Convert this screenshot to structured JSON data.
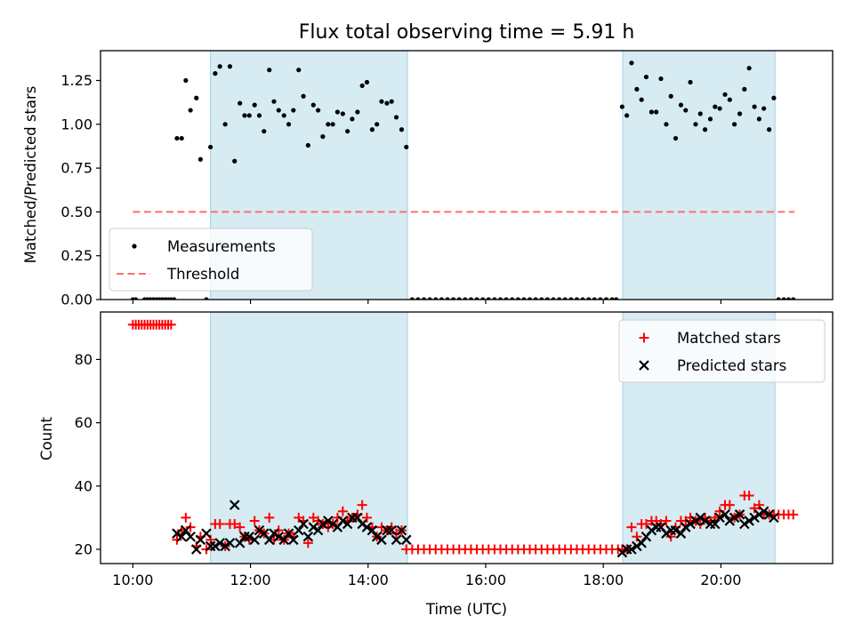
{
  "title": "Flux total observing time = 5.91 h",
  "colors": {
    "shade": "#add8e6",
    "measurement": "#000000",
    "threshold": "#ff6e6e",
    "matched": "#ff0000",
    "predicted": "#000000"
  },
  "x_ticks": [
    "10:00",
    "12:00",
    "14:00",
    "16:00",
    "18:00",
    "20:00"
  ],
  "x_tick_hours": [
    10,
    12,
    14,
    16,
    18,
    20
  ],
  "xlabel": "Time (UTC)",
  "chart_data": [
    {
      "type": "scatter",
      "ylabel": "Matched/Predicted stars",
      "xlim_hours": [
        9.45,
        21.9
      ],
      "ylim": [
        0,
        1.42
      ],
      "y_ticks": [
        "0.00",
        "0.25",
        "0.50",
        "0.75",
        "1.00",
        "1.25"
      ],
      "y_tick_values": [
        0,
        0.25,
        0.5,
        0.75,
        1.0,
        1.25
      ],
      "shaded_intervals_hours": [
        [
          11.32,
          14.67
        ],
        [
          18.33,
          20.92
        ]
      ],
      "legend": {
        "position": "lower-left",
        "entries": [
          "Measurements",
          "Threshold"
        ]
      },
      "threshold": {
        "name": "Threshold",
        "value": 0.5,
        "x_range_hours": [
          10.0,
          21.25
        ]
      },
      "series": [
        {
          "name": "Measurements",
          "x_hours": [
            10.0,
            10.05,
            10.2,
            10.25,
            10.3,
            10.35,
            10.4,
            10.45,
            10.5,
            10.55,
            10.6,
            10.65,
            10.7,
            10.75,
            10.83,
            10.9,
            10.98,
            11.08,
            11.15,
            11.25,
            11.32,
            11.4,
            11.48,
            11.57,
            11.65,
            11.73,
            11.82,
            11.9,
            11.98,
            12.07,
            12.15,
            12.23,
            12.32,
            12.4,
            12.48,
            12.57,
            12.65,
            12.73,
            12.82,
            12.9,
            12.98,
            13.07,
            13.15,
            13.23,
            13.32,
            13.4,
            13.48,
            13.57,
            13.65,
            13.73,
            13.82,
            13.9,
            13.98,
            14.07,
            14.15,
            14.23,
            14.32,
            14.4,
            14.48,
            14.57,
            14.65,
            14.75,
            14.85,
            14.95,
            15.05,
            15.15,
            15.25,
            15.35,
            15.45,
            15.55,
            15.65,
            15.75,
            15.85,
            15.95,
            16.05,
            16.15,
            16.25,
            16.35,
            16.45,
            16.55,
            16.65,
            16.75,
            16.85,
            16.95,
            17.05,
            17.15,
            17.25,
            17.35,
            17.45,
            17.55,
            17.65,
            17.75,
            17.85,
            17.95,
            18.05,
            18.15,
            18.22,
            18.32,
            18.4,
            18.48,
            18.57,
            18.65,
            18.73,
            18.82,
            18.9,
            18.98,
            19.07,
            19.15,
            19.23,
            19.32,
            19.4,
            19.48,
            19.57,
            19.65,
            19.73,
            19.82,
            19.9,
            19.98,
            20.07,
            20.15,
            20.23,
            20.32,
            20.4,
            20.48,
            20.57,
            20.65,
            20.73,
            20.82,
            20.9,
            20.98,
            21.07,
            21.15,
            21.23
          ],
          "y": [
            0.0,
            0.0,
            0.0,
            0.0,
            0.0,
            0.0,
            0.0,
            0.0,
            0.0,
            0.0,
            0.0,
            0.0,
            0.0,
            0.92,
            0.92,
            1.25,
            1.08,
            1.15,
            0.8,
            0.0,
            0.87,
            1.29,
            1.33,
            1.0,
            1.33,
            0.79,
            1.12,
            1.05,
            1.05,
            1.11,
            1.05,
            0.96,
            1.31,
            1.13,
            1.08,
            1.05,
            1.0,
            1.08,
            1.31,
            1.16,
            0.88,
            1.11,
            1.08,
            0.93,
            1.0,
            1.0,
            1.07,
            1.06,
            0.96,
            1.03,
            1.07,
            1.22,
            1.24,
            0.97,
            1.0,
            1.13,
            1.12,
            1.13,
            1.04,
            0.97,
            0.87,
            0.0,
            0.0,
            0.0,
            0.0,
            0.0,
            0.0,
            0.0,
            0.0,
            0.0,
            0.0,
            0.0,
            0.0,
            0.0,
            0.0,
            0.0,
            0.0,
            0.0,
            0.0,
            0.0,
            0.0,
            0.0,
            0.0,
            0.0,
            0.0,
            0.0,
            0.0,
            0.0,
            0.0,
            0.0,
            0.0,
            0.0,
            0.0,
            0.0,
            0.0,
            0.0,
            0.0,
            1.1,
            1.05,
            1.35,
            1.2,
            1.14,
            1.27,
            1.07,
            1.07,
            1.26,
            1.0,
            1.16,
            0.92,
            1.11,
            1.08,
            1.24,
            1.0,
            1.06,
            0.97,
            1.03,
            1.1,
            1.09,
            1.17,
            1.14,
            1.0,
            1.06,
            1.2,
            1.32,
            1.1,
            1.03,
            1.09,
            0.97,
            1.15,
            0.0,
            0.0,
            0.0,
            0.0
          ]
        }
      ]
    },
    {
      "type": "scatter",
      "ylabel": "Count",
      "xlim_hours": [
        9.45,
        21.9
      ],
      "ylim": [
        15.5,
        95
      ],
      "y_ticks": [
        "20",
        "40",
        "60",
        "80"
      ],
      "y_tick_values": [
        20,
        40,
        60,
        80
      ],
      "shaded_intervals_hours": [
        [
          11.32,
          14.67
        ],
        [
          18.33,
          20.92
        ]
      ],
      "legend": {
        "position": "top-right",
        "entries": [
          "Matched stars",
          "Predicted stars"
        ]
      },
      "series": [
        {
          "name": "Matched stars",
          "marker": "+",
          "x_hours": [
            10.0,
            10.05,
            10.1,
            10.15,
            10.2,
            10.25,
            10.3,
            10.35,
            10.4,
            10.45,
            10.5,
            10.55,
            10.6,
            10.65,
            10.75,
            10.83,
            10.9,
            10.98,
            11.08,
            11.15,
            11.25,
            11.32,
            11.4,
            11.48,
            11.57,
            11.65,
            11.73,
            11.82,
            11.9,
            11.98,
            12.07,
            12.15,
            12.23,
            12.32,
            12.4,
            12.48,
            12.57,
            12.65,
            12.73,
            12.82,
            12.9,
            12.98,
            13.07,
            13.15,
            13.23,
            13.32,
            13.4,
            13.48,
            13.57,
            13.65,
            13.73,
            13.82,
            13.9,
            13.98,
            14.07,
            14.15,
            14.23,
            14.32,
            14.4,
            14.48,
            14.57,
            14.65,
            14.75,
            14.85,
            14.95,
            15.05,
            15.15,
            15.25,
            15.35,
            15.45,
            15.55,
            15.65,
            15.75,
            15.85,
            15.95,
            16.05,
            16.15,
            16.25,
            16.35,
            16.45,
            16.55,
            16.65,
            16.75,
            16.85,
            16.95,
            17.05,
            17.15,
            17.25,
            17.35,
            17.45,
            17.55,
            17.65,
            17.75,
            17.85,
            17.95,
            18.05,
            18.15,
            18.25,
            18.32,
            18.4,
            18.48,
            18.57,
            18.65,
            18.73,
            18.82,
            18.9,
            18.98,
            19.07,
            19.15,
            19.23,
            19.32,
            19.4,
            19.48,
            19.57,
            19.65,
            19.73,
            19.82,
            19.9,
            19.98,
            20.07,
            20.15,
            20.23,
            20.32,
            20.4,
            20.48,
            20.57,
            20.65,
            20.73,
            20.82,
            20.9,
            20.98,
            21.07,
            21.15,
            21.23
          ],
          "y": [
            91,
            91,
            91,
            91,
            91,
            91,
            91,
            91,
            91,
            91,
            91,
            91,
            91,
            91,
            23,
            26,
            30,
            27,
            21,
            24,
            20,
            23,
            28,
            28,
            21,
            28,
            28,
            27,
            24,
            23,
            29,
            26,
            25,
            30,
            23,
            26,
            23,
            25,
            24,
            30,
            29,
            22,
            30,
            29,
            28,
            27,
            28,
            30,
            32,
            29,
            30,
            31,
            34,
            30,
            27,
            24,
            27,
            26,
            27,
            25,
            26,
            20,
            20,
            20,
            20,
            20,
            20,
            20,
            20,
            20,
            20,
            20,
            20,
            20,
            20,
            20,
            20,
            20,
            20,
            20,
            20,
            20,
            20,
            20,
            20,
            20,
            20,
            20,
            20,
            20,
            20,
            20,
            20,
            20,
            20,
            20,
            20,
            20,
            20,
            20,
            27,
            24,
            28,
            28,
            29,
            29,
            28,
            29,
            24,
            27,
            29,
            29,
            30,
            29,
            28,
            30,
            29,
            30,
            32,
            34,
            34,
            30,
            31,
            37,
            37,
            33,
            34,
            31,
            31,
            31,
            31,
            31,
            31,
            31
          ]
        },
        {
          "name": "Predicted stars",
          "marker": "x",
          "x_hours": [
            10.75,
            10.83,
            10.9,
            10.98,
            11.08,
            11.15,
            11.25,
            11.32,
            11.4,
            11.48,
            11.57,
            11.65,
            11.73,
            11.82,
            11.9,
            11.98,
            12.07,
            12.15,
            12.23,
            12.32,
            12.4,
            12.48,
            12.57,
            12.65,
            12.73,
            12.82,
            12.9,
            12.98,
            13.07,
            13.15,
            13.23,
            13.32,
            13.4,
            13.48,
            13.57,
            13.65,
            13.73,
            13.82,
            13.9,
            13.98,
            14.07,
            14.15,
            14.23,
            14.32,
            14.4,
            14.48,
            14.57,
            14.65,
            18.32,
            18.4,
            18.48,
            18.57,
            18.65,
            18.73,
            18.82,
            18.9,
            18.98,
            19.07,
            19.15,
            19.23,
            19.32,
            19.4,
            19.48,
            19.57,
            19.65,
            19.73,
            19.82,
            19.9,
            19.98,
            20.07,
            20.15,
            20.23,
            20.32,
            20.4,
            20.48,
            20.57,
            20.65,
            20.73,
            20.82,
            20.9
          ],
          "y": [
            25,
            24,
            26,
            24,
            20,
            23,
            25,
            21,
            21,
            22,
            21,
            22,
            34,
            22,
            24,
            24,
            23,
            26,
            25,
            23,
            25,
            24,
            23,
            25,
            23,
            26,
            28,
            24,
            27,
            26,
            28,
            29,
            28,
            27,
            29,
            28,
            30,
            30,
            28,
            27,
            26,
            24,
            23,
            26,
            26,
            23,
            26,
            23,
            19,
            20,
            20,
            21,
            22,
            24,
            26,
            27,
            27,
            25,
            26,
            26,
            25,
            27,
            28,
            29,
            30,
            29,
            28,
            28,
            30,
            31,
            29,
            30,
            31,
            28,
            29,
            30,
            31,
            32,
            31,
            30
          ]
        }
      ]
    }
  ]
}
